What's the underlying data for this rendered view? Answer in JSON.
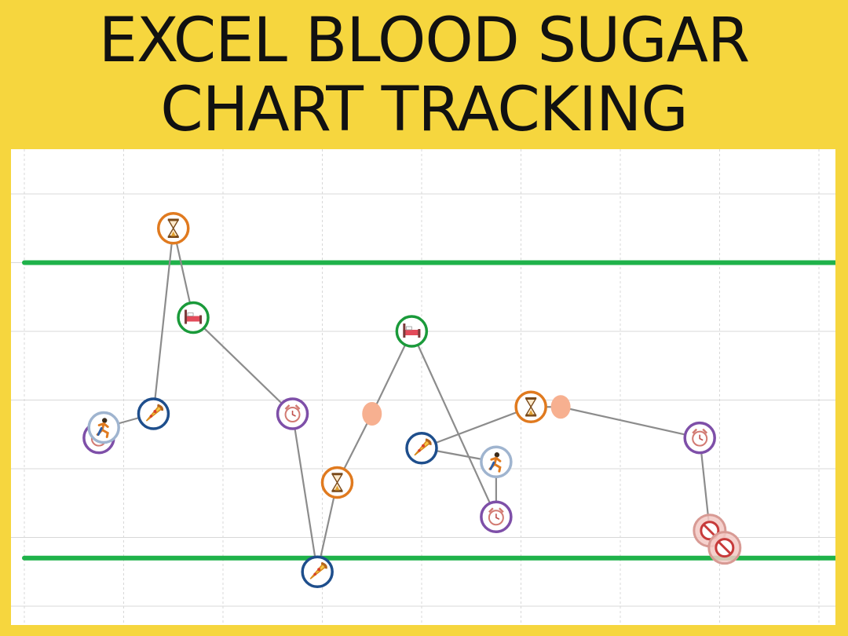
{
  "title_lines": [
    "EXCEL BLOOD SUGAR",
    "CHART TRACKING"
  ],
  "colors": {
    "background": "#f6d63e",
    "limit_line": "#1fb24a",
    "series_line": "#8c8c8c",
    "grid": "#d8d8d8",
    "wake": "#7e4fa8",
    "exercise": "#9fb4cf",
    "meal": "#1e4e8c",
    "snack": "#e07a1f",
    "sleep": "#1a9a3a",
    "none": "#e0a09a",
    "unmarked": "#f7b090"
  },
  "chart_data": {
    "type": "scatter",
    "title": "",
    "xlabel": "",
    "ylabel": "",
    "xlim": [
      0,
      8.25
    ],
    "ylim": [
      0,
      6.4
    ],
    "grid": true,
    "legend": "none",
    "x_gridlines": [
      0,
      1,
      2,
      3,
      4,
      5,
      6,
      7,
      8
    ],
    "y_gridlines": [
      0,
      1,
      2,
      3,
      4,
      5,
      6
    ],
    "reference_lines": [
      {
        "name": "upper-limit",
        "y": 5.0
      },
      {
        "name": "lower-limit",
        "y": 0.7
      }
    ],
    "series": [
      {
        "points": [
          {
            "x": 0.75,
            "y": 2.45,
            "icon": "wake"
          },
          {
            "x": 0.8,
            "y": 2.6,
            "icon": "exercise"
          },
          {
            "x": 1.3,
            "y": 2.8,
            "icon": "meal"
          },
          {
            "x": 1.5,
            "y": 5.5,
            "icon": "snack"
          },
          {
            "x": 1.7,
            "y": 4.2,
            "icon": "sleep"
          },
          {
            "x": 2.7,
            "y": 2.8,
            "icon": "wake"
          },
          {
            "x": 2.95,
            "y": 0.5,
            "icon": "meal"
          },
          {
            "x": 3.15,
            "y": 1.8,
            "icon": "snack"
          },
          {
            "x": 3.5,
            "y": 2.8,
            "icon": "unmarked"
          },
          {
            "x": 3.9,
            "y": 4.0,
            "icon": "sleep"
          },
          {
            "x": 4.75,
            "y": 1.3,
            "icon": "wake"
          }
        ]
      },
      {
        "points": [
          {
            "x": 4.0,
            "y": 2.3,
            "icon": "meal"
          },
          {
            "x": 4.75,
            "y": 2.1,
            "icon": "exercise"
          },
          {
            "x": 4.75,
            "y": 1.3,
            "icon": "wake"
          }
        ]
      },
      {
        "points": [
          {
            "x": 4.0,
            "y": 2.3,
            "icon": "meal"
          },
          {
            "x": 5.1,
            "y": 2.9,
            "icon": "snack"
          },
          {
            "x": 5.4,
            "y": 2.9,
            "icon": "unmarked"
          },
          {
            "x": 6.8,
            "y": 2.45,
            "icon": "wake"
          },
          {
            "x": 6.9,
            "y": 1.1,
            "icon": "none"
          },
          {
            "x": 7.05,
            "y": 0.85,
            "icon": "none"
          }
        ]
      }
    ]
  }
}
